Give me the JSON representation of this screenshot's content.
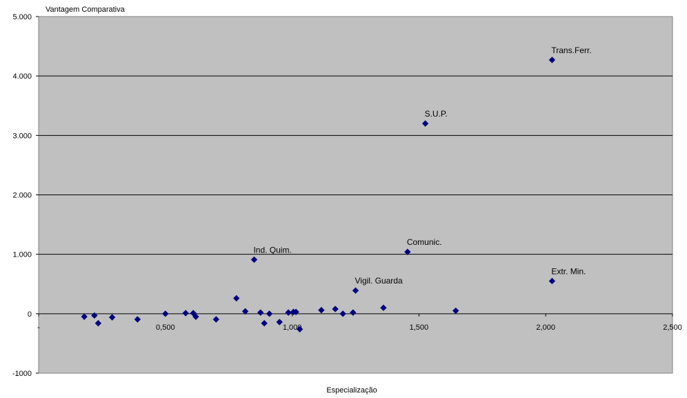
{
  "chart_data": {
    "type": "scatter",
    "title": "",
    "xlabel": "Especialização",
    "ylabel": "Vantagem Comparativa",
    "xlim": [
      0,
      2.5
    ],
    "ylim": [
      -1000,
      5000
    ],
    "x_ticks": [
      0,
      0.5,
      1.0,
      1.5,
      2.0,
      2.5
    ],
    "x_tick_labels": [
      "-",
      "0,500",
      "1,000",
      "1,500",
      "2,000",
      "2,500"
    ],
    "y_ticks": [
      -1000,
      0,
      1000,
      2000,
      3000,
      4000,
      5000
    ],
    "y_tick_labels": [
      "-1000",
      "0",
      "1.000",
      "2.000",
      "3.000",
      "4.000",
      "5.000"
    ],
    "grid": "horizontal",
    "legend": "none",
    "colors": {
      "plot_background": "#c0c0c0",
      "marker": "#000080",
      "gridline": "#000000"
    },
    "series": [
      {
        "points": [
          {
            "x": 0.18,
            "y": -50
          },
          {
            "x": 0.22,
            "y": -30
          },
          {
            "x": 0.235,
            "y": -160
          },
          {
            "x": 0.29,
            "y": -60
          },
          {
            "x": 0.39,
            "y": -95
          },
          {
            "x": 0.5,
            "y": 0
          },
          {
            "x": 0.58,
            "y": 10
          },
          {
            "x": 0.61,
            "y": 10
          },
          {
            "x": 0.62,
            "y": -50
          },
          {
            "x": 0.7,
            "y": -95
          },
          {
            "x": 0.78,
            "y": 260
          },
          {
            "x": 0.815,
            "y": 40
          },
          {
            "x": 0.85,
            "y": 910
          },
          {
            "x": 0.875,
            "y": 20
          },
          {
            "x": 0.89,
            "y": -160
          },
          {
            "x": 0.91,
            "y": 0
          },
          {
            "x": 0.95,
            "y": -140
          },
          {
            "x": 0.985,
            "y": 20
          },
          {
            "x": 1.005,
            "y": 30
          },
          {
            "x": 1.015,
            "y": 30
          },
          {
            "x": 1.03,
            "y": -260
          },
          {
            "x": 1.115,
            "y": 60
          },
          {
            "x": 1.17,
            "y": 80
          },
          {
            "x": 1.2,
            "y": 0
          },
          {
            "x": 1.24,
            "y": 20
          },
          {
            "x": 1.25,
            "y": 390
          },
          {
            "x": 1.36,
            "y": 100
          },
          {
            "x": 1.455,
            "y": 1040
          },
          {
            "x": 1.525,
            "y": 3200
          },
          {
            "x": 1.645,
            "y": 50
          },
          {
            "x": 2.025,
            "y": 550
          },
          {
            "x": 2.025,
            "y": 4270
          }
        ]
      }
    ],
    "annotations": [
      {
        "text": "Trans.Ferr.",
        "x": 2.025,
        "y": 4270
      },
      {
        "text": "S.U.P.",
        "x": 1.525,
        "y": 3200
      },
      {
        "text": "Ind. Quim.",
        "x": 0.85,
        "y": 910
      },
      {
        "text": "Comunic.",
        "x": 1.455,
        "y": 1040
      },
      {
        "text": "Vigil. Guarda",
        "x": 1.25,
        "y": 390
      },
      {
        "text": "Extr. Min.",
        "x": 2.025,
        "y": 550
      }
    ]
  }
}
